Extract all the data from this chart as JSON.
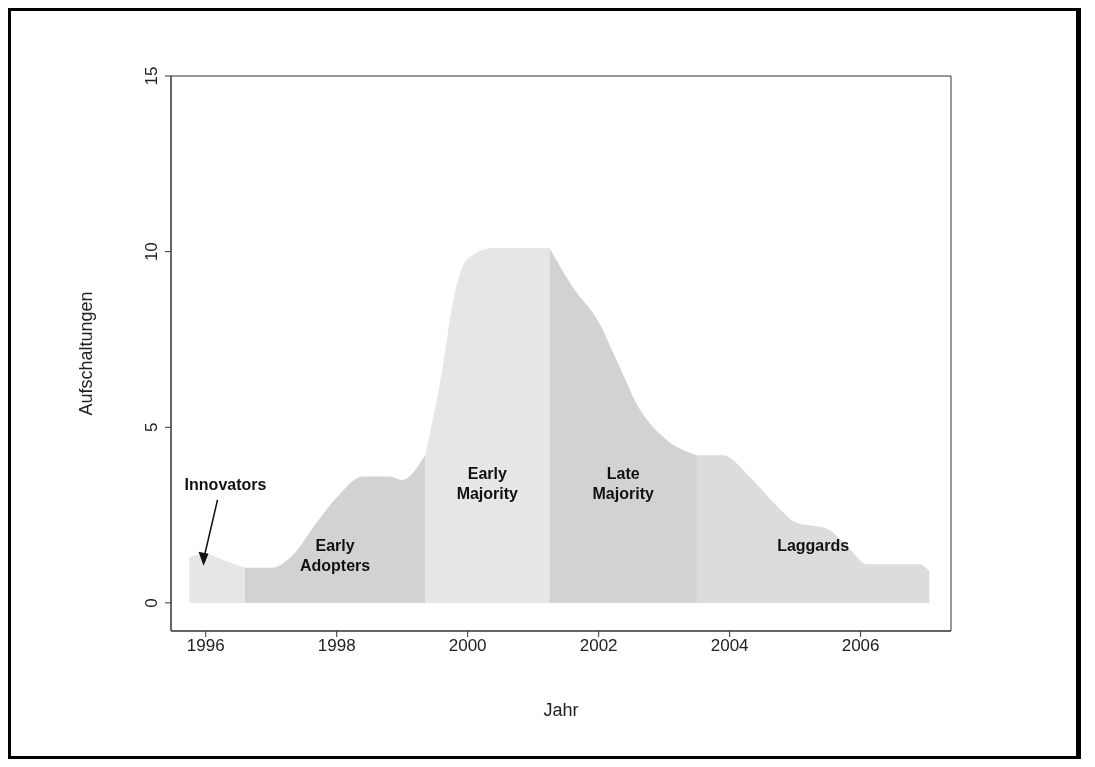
{
  "chart_data": {
    "type": "area",
    "xlabel": "Jahr",
    "ylabel": "Aufschaltungen",
    "xlim": [
      1995.47,
      2007.38
    ],
    "xticks": [
      1996,
      1998,
      2000,
      2002,
      2004,
      2006
    ],
    "ylim": [
      -0.8,
      15
    ],
    "yticks": [
      0,
      5,
      10,
      15
    ],
    "legend": false,
    "series": [
      {
        "name": "Innovators",
        "color": "#e6e6e6",
        "x": [
          1995.75,
          1996.0,
          1996.3,
          1996.6
        ],
        "values": [
          1.3,
          1.4,
          1.2,
          1.0
        ]
      },
      {
        "name": "Early\nAdopters",
        "color": "#d2d2d2",
        "x": [
          1996.6,
          1997.0,
          1997.3,
          1997.7,
          1998.0,
          1998.4,
          1998.8,
          1999.0,
          1999.35
        ],
        "values": [
          1.0,
          1.0,
          1.3,
          2.3,
          3.0,
          3.6,
          3.6,
          3.5,
          4.2
        ]
      },
      {
        "name": "Early\nMajority",
        "color": "#e6e6e6",
        "x": [
          1999.35,
          1999.6,
          1999.8,
          2000.0,
          2000.4,
          2001.0,
          2001.25
        ],
        "values": [
          4.2,
          6.5,
          8.8,
          9.8,
          10.1,
          10.1,
          10.1
        ]
      },
      {
        "name": "Late\nMajority",
        "color": "#d2d2d2",
        "x": [
          2001.25,
          2001.6,
          2002.0,
          2002.3,
          2002.6,
          2003.0,
          2003.5
        ],
        "values": [
          10.1,
          9.0,
          8.0,
          6.8,
          5.6,
          4.7,
          4.2
        ]
      },
      {
        "name": "Laggards",
        "color": "#dcdcdc",
        "x": [
          2003.5,
          2003.9,
          2004.3,
          2004.7,
          2005.0,
          2005.5,
          2005.8,
          2006.1,
          2006.5,
          2006.9,
          2007.05
        ],
        "values": [
          4.2,
          4.2,
          3.6,
          2.8,
          2.3,
          2.1,
          1.6,
          1.1,
          1.1,
          1.1,
          0.9
        ]
      }
    ]
  }
}
